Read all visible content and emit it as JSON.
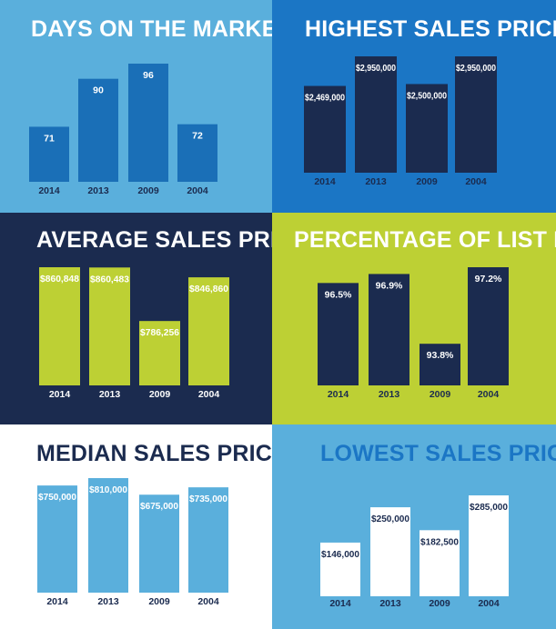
{
  "colors": {
    "light_blue": "#5aafdc",
    "mid_blue": "#1a6fb7",
    "bright_blue": "#1b76c5",
    "navy": "#1b2b4f",
    "lime": "#bdd034",
    "white": "#ffffff"
  },
  "chart_data": [
    {
      "type": "bar",
      "title": "DAYS ON THE MARKET",
      "categories": [
        "2014",
        "2013",
        "2009",
        "2004"
      ],
      "values": [
        71,
        90,
        96,
        72
      ],
      "labels": [
        "71",
        "90",
        "96",
        "72"
      ],
      "ylim": [
        60,
        96
      ]
    },
    {
      "type": "bar",
      "title": "HIGHEST SALES PRICE",
      "categories": [
        "2014",
        "2013",
        "2009",
        "2004"
      ],
      "values": [
        2469000,
        2950000,
        2500000,
        2950000
      ],
      "labels": [
        "$2,469,000",
        "$2,950,000",
        "$2,500,000",
        "$2,950,000"
      ],
      "ylim": [
        1650000,
        2950000
      ]
    },
    {
      "type": "bar",
      "title": "AVERAGE SALES PRICE",
      "categories": [
        "2014",
        "2013",
        "2009",
        "2004"
      ],
      "values": [
        860848,
        860483,
        786256,
        846860
      ],
      "labels": [
        "$860,848",
        "$860,483",
        "$786,256",
        "$846,860"
      ],
      "ylim": [
        760000,
        860848
      ]
    },
    {
      "type": "bar",
      "title": "PERCENTAGE OF LIST PRICE",
      "categories": [
        "2014",
        "2013",
        "2009",
        "2004"
      ],
      "values": [
        96.5,
        96.9,
        93.8,
        97.2
      ],
      "labels": [
        "96.5%",
        "96.9%",
        "93.8%",
        "97.2%"
      ],
      "ylim": [
        93.0,
        97.2
      ]
    },
    {
      "type": "bar",
      "title": "MEDIAN SALES PRICE",
      "categories": [
        "2014",
        "2013",
        "2009",
        "2004"
      ],
      "values": [
        750000,
        810000,
        675000,
        735000
      ],
      "labels": [
        "$750,000",
        "$810,000",
        "$675,000",
        "$735,000"
      ],
      "ylim": [
        440000,
        810000
      ]
    },
    {
      "type": "bar",
      "title": "LOWEST SALES PRICE",
      "categories": [
        "2014",
        "2013",
        "2009",
        "2004"
      ],
      "values": [
        146000,
        250000,
        182500,
        285000
      ],
      "labels": [
        "$146,000",
        "$250,000",
        "$182,500",
        "$285,000"
      ],
      "ylim": [
        95000,
        285000
      ]
    }
  ]
}
